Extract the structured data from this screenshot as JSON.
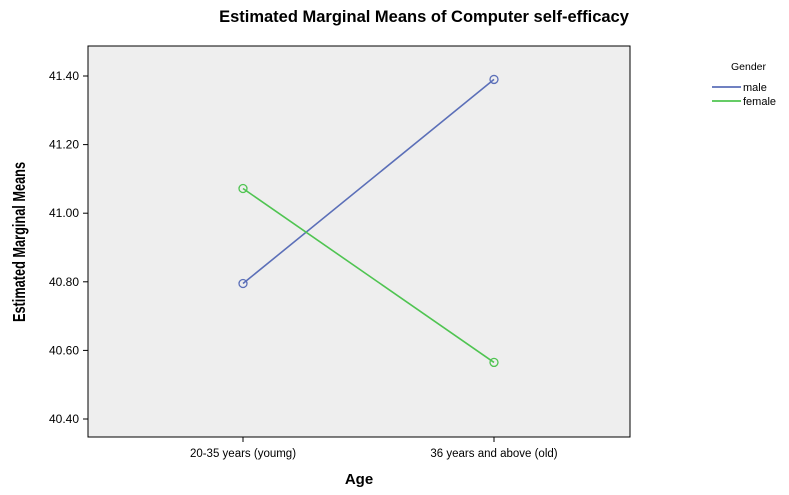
{
  "chart_data": {
    "type": "line",
    "title": "Estimated Marginal Means of Computer self-efficacy",
    "xlabel": "Age",
    "ylabel": "Estimated Marginal Means",
    "categories": [
      "20-35 years (youmg)",
      "36 years and above (old)"
    ],
    "yticks": [
      "40.40",
      "40.60",
      "40.80",
      "41.00",
      "41.20",
      "41.40"
    ],
    "ylim": [
      40.35,
      41.45
    ],
    "grid": false,
    "legend": {
      "title": "Gender",
      "placement": "right"
    },
    "series": [
      {
        "name": "male",
        "values": [
          40.795,
          41.39
        ],
        "color": "#5b6fb8",
        "marker": "circle-open"
      },
      {
        "name": "female",
        "values": [
          41.072,
          40.565
        ],
        "color": "#4fc451",
        "marker": "circle-open"
      }
    ],
    "plot_background": "#eeeeee"
  }
}
